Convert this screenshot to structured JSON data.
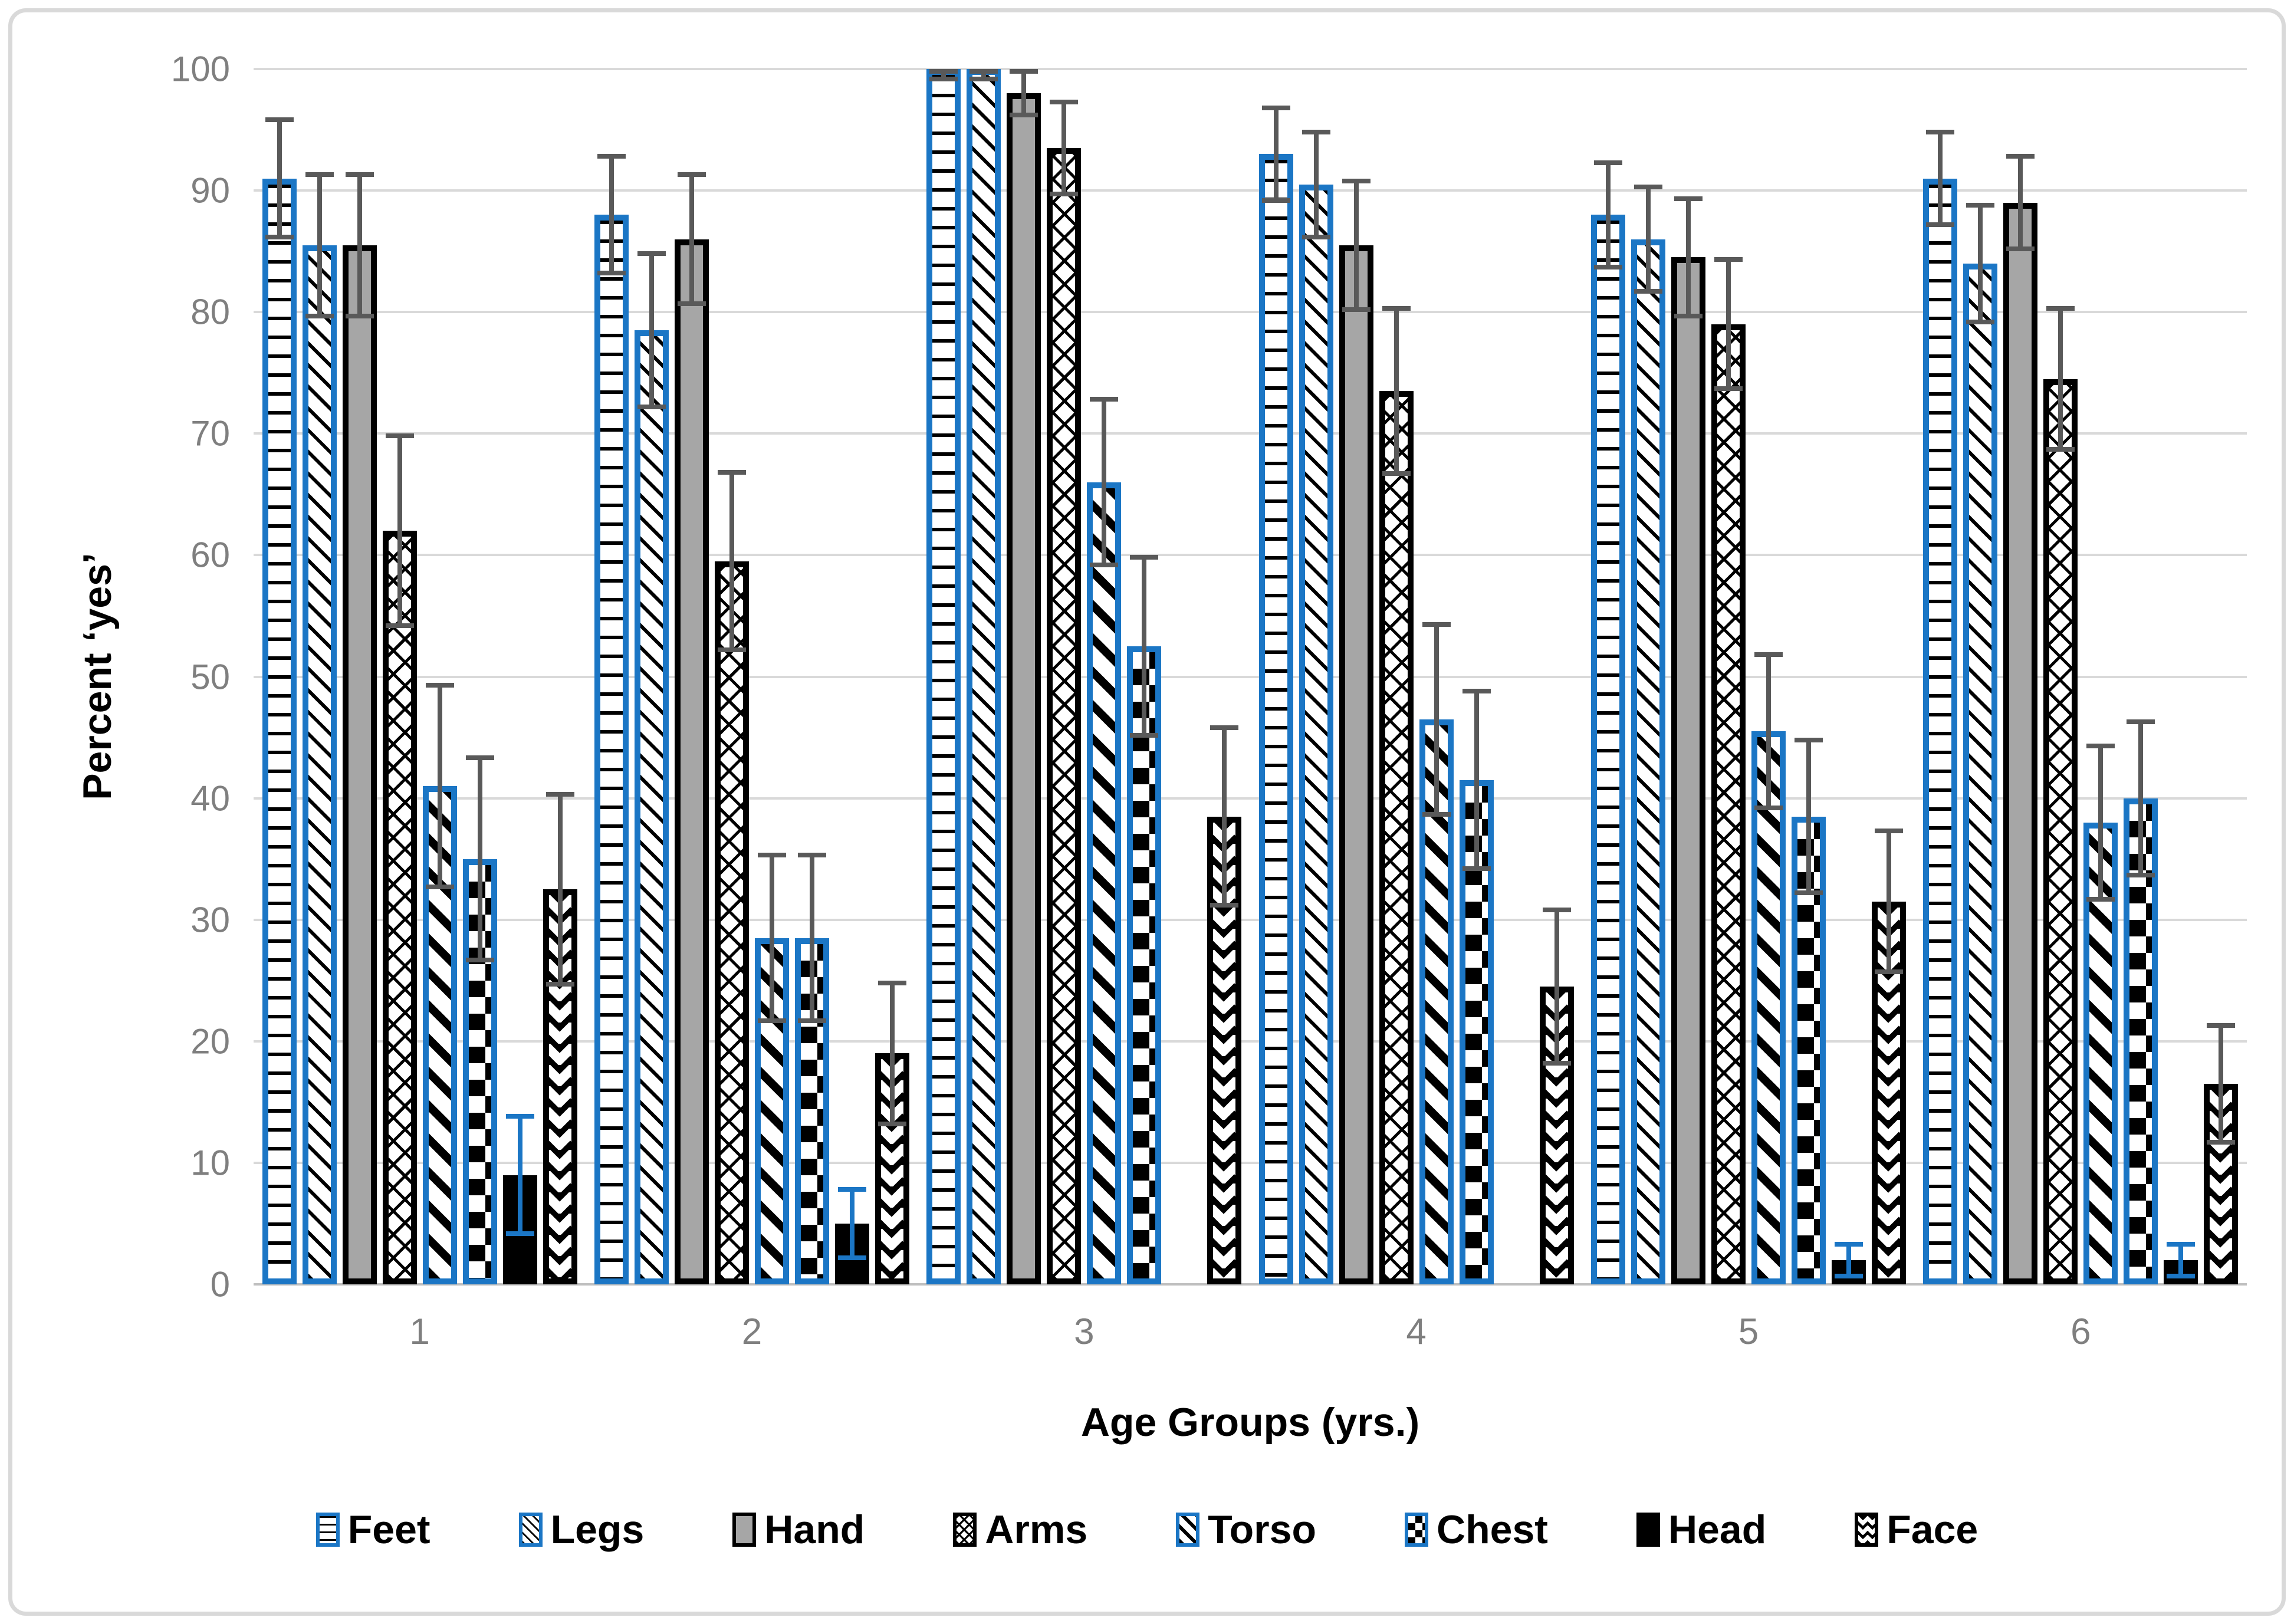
{
  "styles": {
    "accent_blue": "#1B76C5",
    "bar_gray_fill": "#A6A6A6",
    "error_gray": "#595959",
    "grid_color": "#D9D9D9",
    "tick_text_color": "#7F7F7F",
    "axis_title_color": "#000000",
    "figure_border_color": "#D9D9D9"
  },
  "chart_data": {
    "type": "bar",
    "title": "",
    "xlabel": "Age Groups (yrs.)",
    "ylabel": "Percent ‘yes’",
    "ylim": [
      0,
      100
    ],
    "yticks": [
      0,
      10,
      20,
      30,
      40,
      50,
      60,
      70,
      80,
      90,
      100
    ],
    "grid": true,
    "legend_position": "bottom",
    "error_bars": true,
    "categories": [
      "1",
      "2",
      "3",
      "4",
      "5",
      "6"
    ],
    "series": [
      {
        "name": "Feet",
        "pattern": "feet",
        "border": "#1B76C5",
        "error_color": "#595959",
        "values": [
          91,
          88,
          100,
          93,
          88,
          91
        ],
        "errors": [
          5,
          5,
          1,
          4,
          4.5,
          4
        ]
      },
      {
        "name": "Legs",
        "pattern": "legs",
        "border": "#1B76C5",
        "error_color": "#595959",
        "values": [
          85.5,
          78.5,
          100,
          90.5,
          86,
          84
        ],
        "errors": [
          6,
          6.5,
          1,
          4.5,
          4.5,
          5
        ]
      },
      {
        "name": "Hand",
        "pattern": "hand",
        "border": "#000000",
        "error_color": "#595959",
        "values": [
          85.5,
          86,
          98,
          85.5,
          84.5,
          89
        ],
        "errors": [
          6,
          5.5,
          2,
          5.5,
          5,
          4
        ]
      },
      {
        "name": "Arms",
        "pattern": "arms",
        "border": "#000000",
        "error_color": "#595959",
        "values": [
          62,
          59.5,
          93.5,
          73.5,
          79,
          74.5
        ],
        "errors": [
          8,
          7.5,
          4,
          7,
          5.5,
          6
        ]
      },
      {
        "name": "Torso",
        "pattern": "torso",
        "border": "#1B76C5",
        "error_color": "#595959",
        "values": [
          41,
          28.5,
          66,
          46.5,
          45.5,
          38
        ],
        "errors": [
          8.5,
          7,
          7,
          8,
          6.5,
          6.5
        ]
      },
      {
        "name": "Chest",
        "pattern": "chest",
        "border": "#1B76C5",
        "error_color": "#595959",
        "values": [
          35,
          28.5,
          52.5,
          41.5,
          38.5,
          40
        ],
        "errors": [
          8.5,
          7,
          7.5,
          7.5,
          6.5,
          6.5
        ]
      },
      {
        "name": "Head",
        "pattern": "head",
        "border": "#000000",
        "error_color": "#1B76C5",
        "values": [
          9,
          5,
          0,
          0,
          2,
          2
        ],
        "errors": [
          5,
          3,
          0,
          0,
          1.5,
          1.5
        ]
      },
      {
        "name": "Face",
        "pattern": "face",
        "border": "#000000",
        "error_color": "#595959",
        "values": [
          32.5,
          19,
          38.5,
          24.5,
          31.5,
          16.5
        ],
        "errors": [
          8,
          6,
          7.5,
          6.5,
          6,
          5
        ]
      }
    ]
  }
}
